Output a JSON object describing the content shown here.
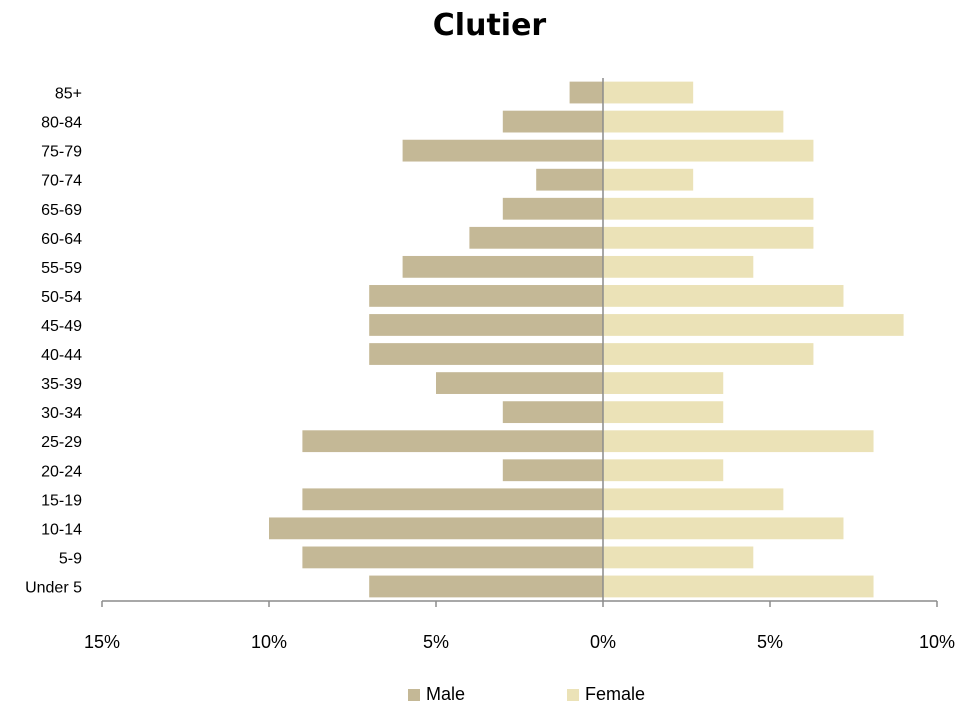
{
  "chart_data": {
    "type": "bar",
    "orientation": "horizontal",
    "title": "Clutier",
    "categories": [
      "85+",
      "80-84",
      "75-79",
      "70-74",
      "65-69",
      "60-64",
      "55-59",
      "50-54",
      "45-49",
      "40-44",
      "35-39",
      "30-34",
      "25-29",
      "20-24",
      "15-19",
      "10-14",
      "5-9",
      "Under 5"
    ],
    "series": [
      {
        "name": "Male",
        "color": "#c4b896",
        "values": [
          1,
          3,
          6,
          2,
          3,
          4,
          6,
          7,
          7,
          7,
          5,
          3,
          9,
          3,
          9,
          10,
          9,
          7
        ]
      },
      {
        "name": "Female",
        "color": "#ebe2b7",
        "values": [
          2.7,
          5.4,
          6.3,
          2.7,
          6.3,
          6.3,
          4.5,
          7.2,
          9.0,
          6.3,
          3.6,
          3.6,
          8.1,
          3.6,
          5.4,
          7.2,
          4.5,
          8.1
        ]
      }
    ],
    "xlim": [
      -15,
      10
    ],
    "x_ticks": [
      -15,
      -10,
      -5,
      0,
      5,
      10
    ],
    "x_tick_labels": [
      "15%",
      "10%",
      "5%",
      "0%",
      "5%",
      "10%"
    ],
    "xlabel": "",
    "ylabel": "",
    "grid": false,
    "legend_position": "bottom"
  }
}
